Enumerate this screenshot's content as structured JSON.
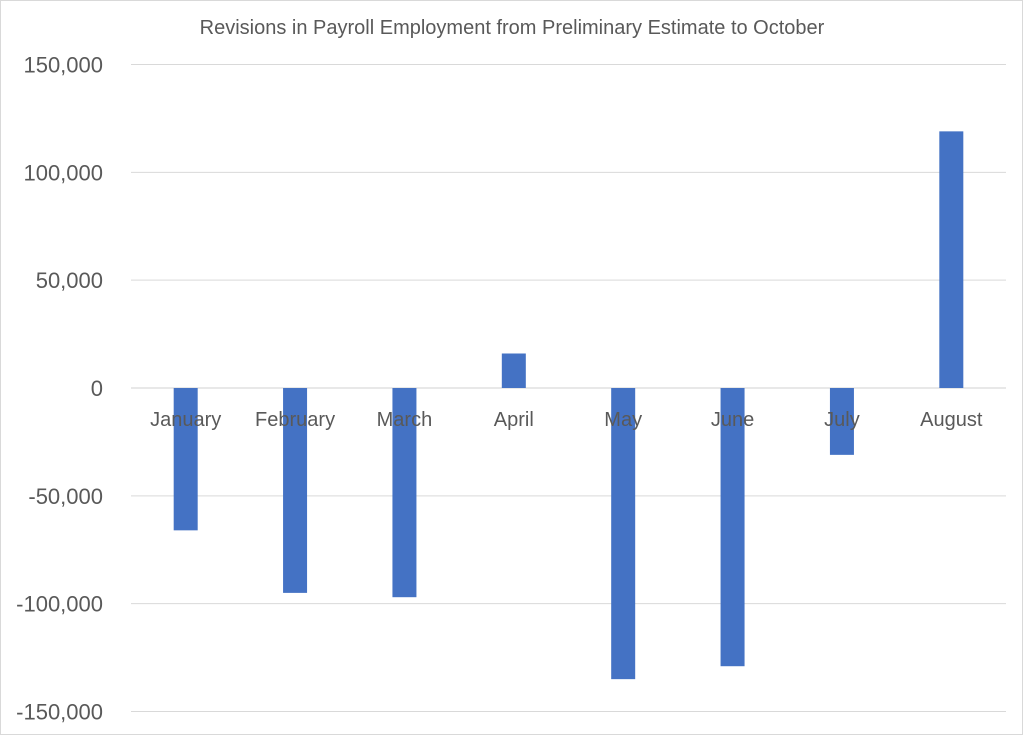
{
  "chart_data": {
    "type": "bar",
    "title": "Revisions in Payroll Employment from Preliminary Estimate to October",
    "xlabel": "",
    "ylabel": "",
    "categories": [
      "January",
      "February",
      "March",
      "April",
      "May",
      "June",
      "July",
      "August"
    ],
    "values": [
      -66000,
      -95000,
      -97000,
      16000,
      -135000,
      -129000,
      -31000,
      119000
    ],
    "ylim": [
      -150000,
      150000
    ],
    "y_ticks": [
      150000,
      100000,
      50000,
      0,
      -50000,
      -100000,
      -150000
    ],
    "y_tick_labels": [
      "150,000",
      "100,000",
      "50,000",
      "0",
      "-50,000",
      "-100,000",
      "-150,000"
    ],
    "grid": true,
    "legend": "none",
    "bar_color": "#4472c4"
  }
}
